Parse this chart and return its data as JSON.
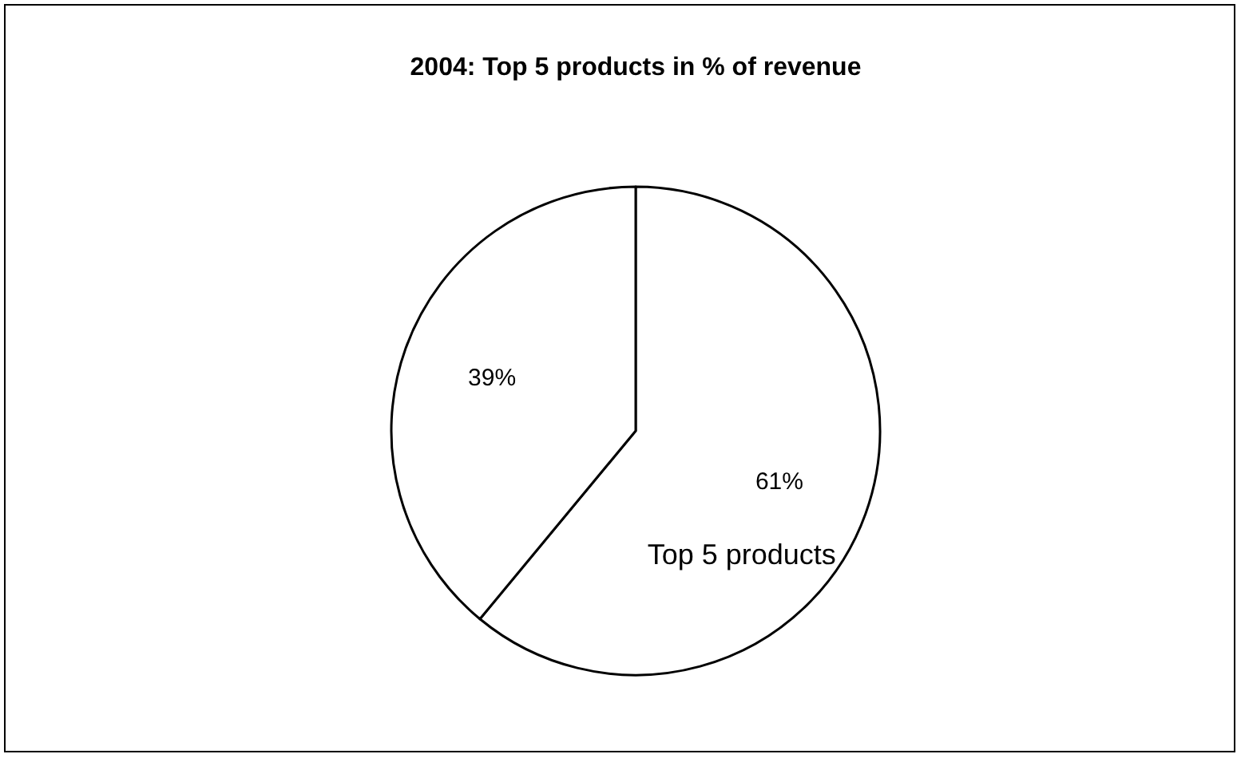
{
  "chart_data": {
    "type": "pie",
    "title": "2004: Top 5 products in % of revenue",
    "categories": [
      "Top 5 products",
      null
    ],
    "values": [
      61,
      39
    ],
    "colors": [
      "#ffffff",
      "#ffffff"
    ],
    "value_labels": [
      "61%",
      "39%"
    ],
    "legend": false
  }
}
